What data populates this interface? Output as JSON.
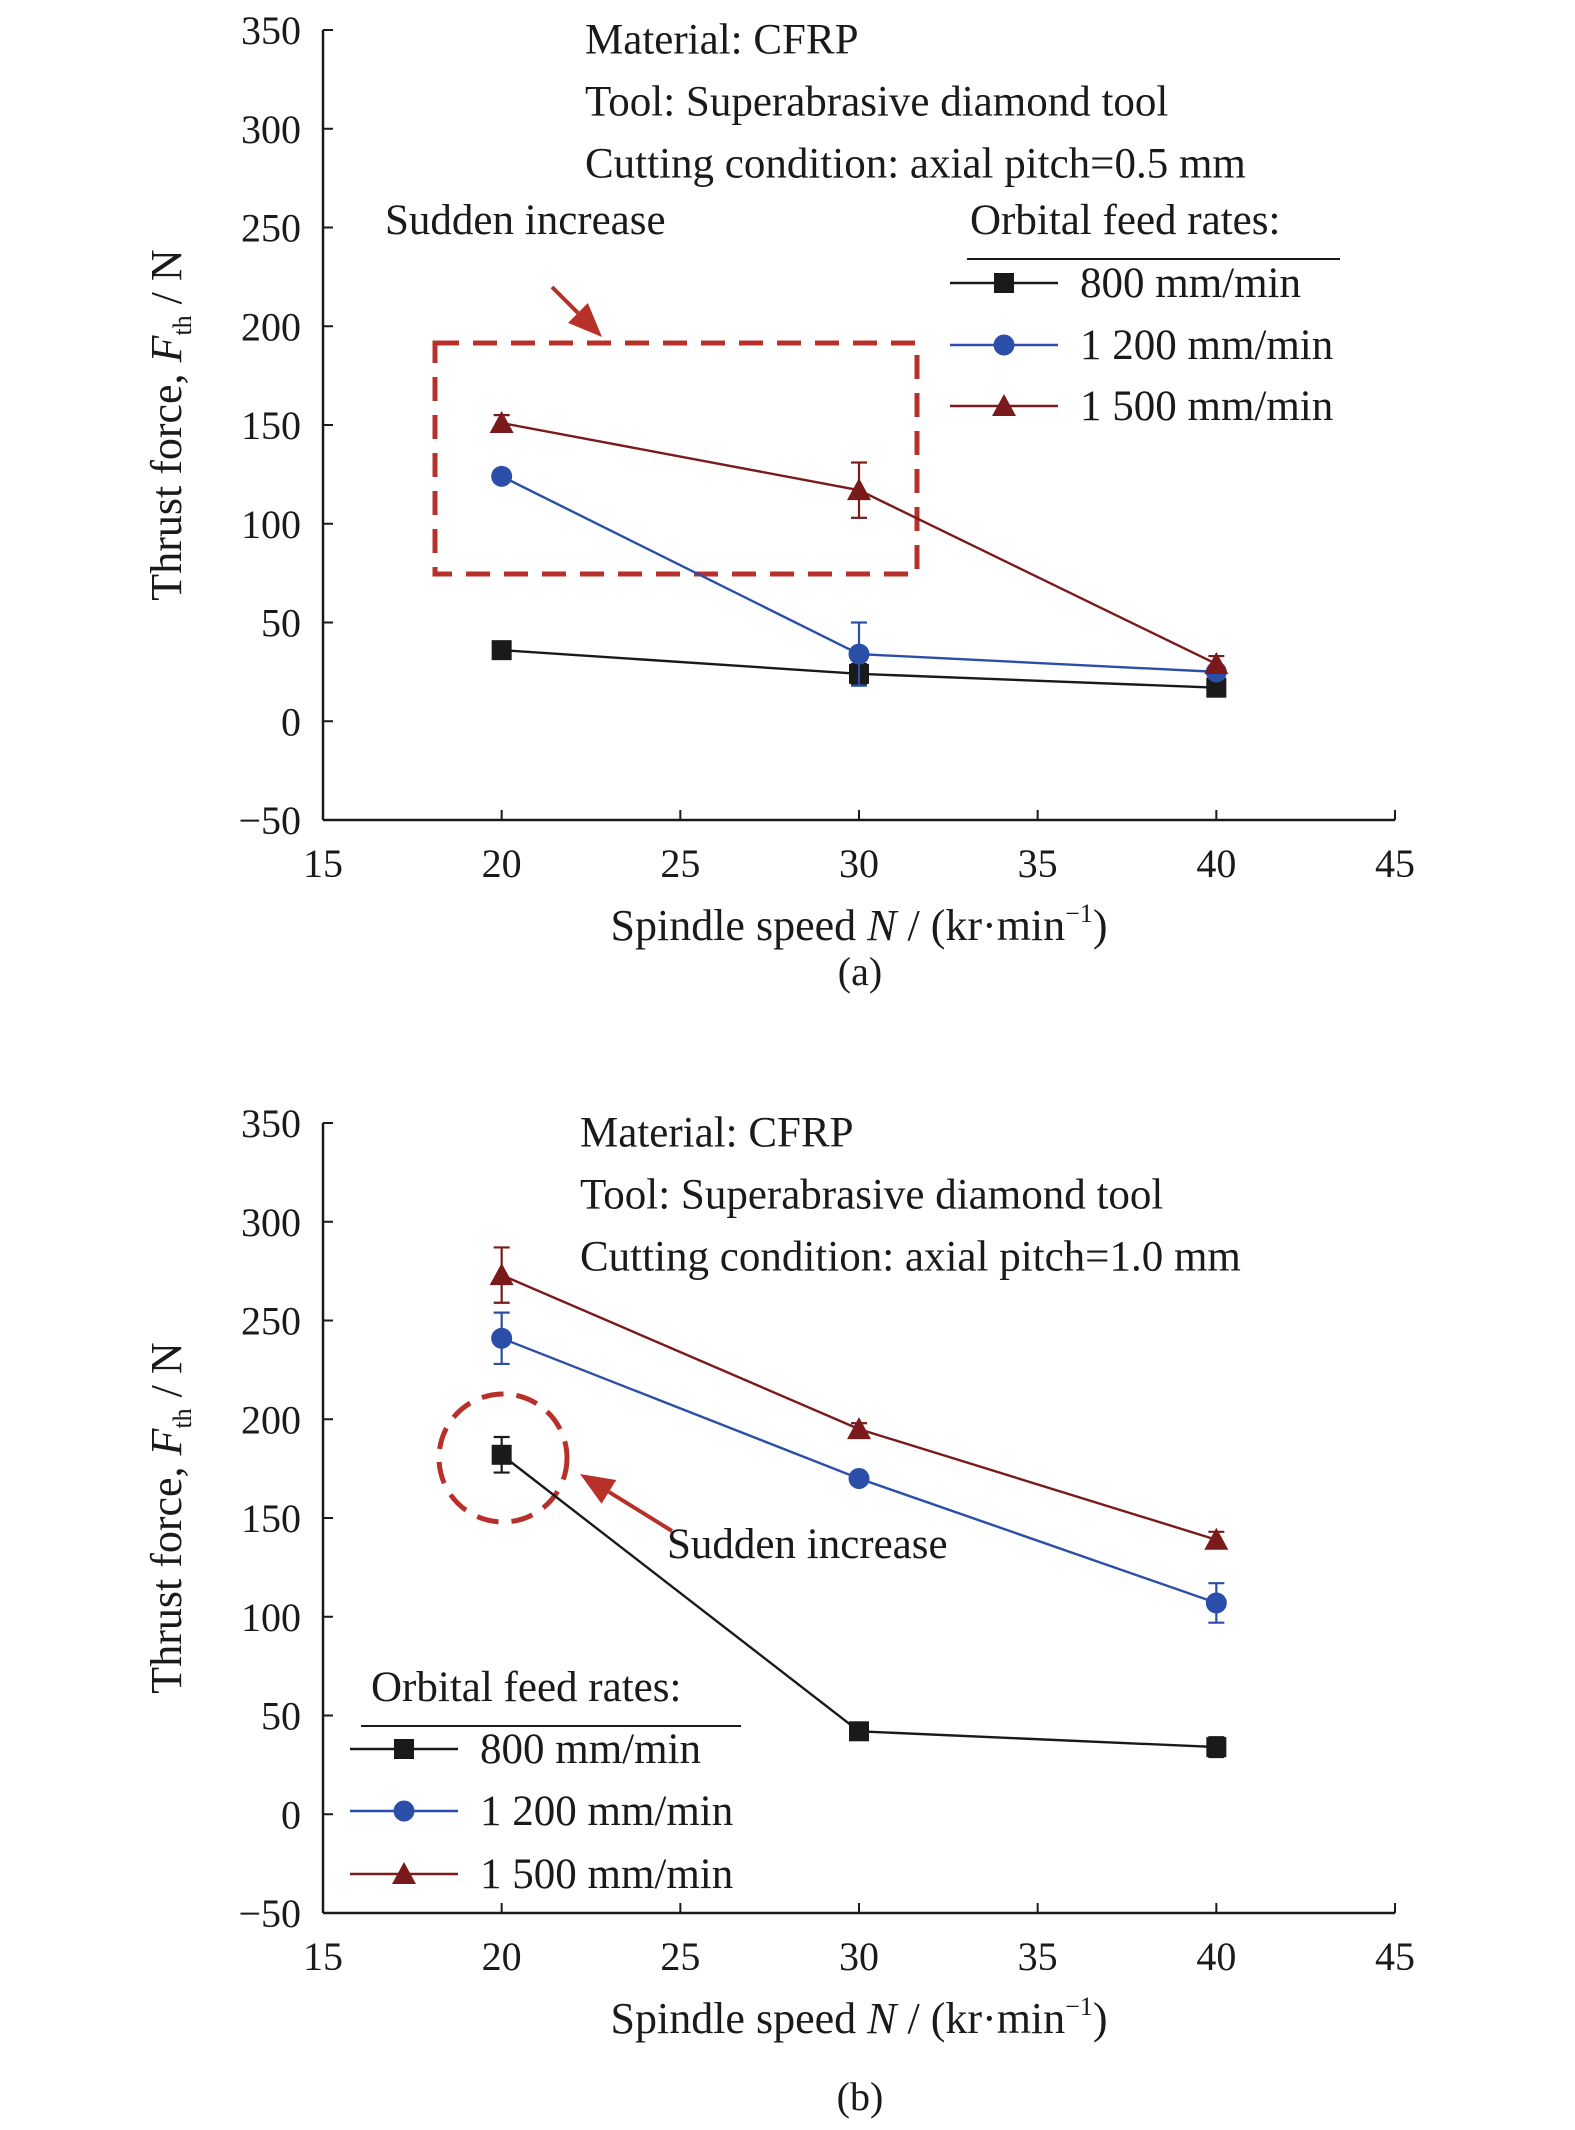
{
  "chart_data": [
    {
      "type": "line",
      "panel_label": "(a)",
      "xlabel_prefix": "Spindle speed ",
      "xlabel_var": "N",
      "xlabel_units": " / (kr·min",
      "xlabel_exp": "−1",
      "xlabel_close": ")",
      "ylabel_prefix": "Thrust force, ",
      "ylabel_var": "F",
      "ylabel_sub": "th",
      "ylabel_units": " / N",
      "xlim": [
        15,
        45
      ],
      "ylim": [
        -50,
        350
      ],
      "xticks": [
        15,
        20,
        25,
        30,
        35,
        40,
        45
      ],
      "yticks": [
        -50,
        0,
        50,
        100,
        150,
        200,
        250,
        300,
        350
      ],
      "xtick_labels": [
        "15",
        "20",
        "25",
        "30",
        "35",
        "40",
        "45"
      ],
      "ytick_labels": [
        "−50",
        "0",
        "50",
        "100",
        "150",
        "200",
        "250",
        "300",
        "350"
      ],
      "notes": [
        "Material: CFRP",
        "Tool: Superabrasive diamond tool",
        "Cutting condition: axial pitch=0.5 mm"
      ],
      "legend_title": "Orbital feed rates:",
      "legend_position": "right",
      "annotation": {
        "text": "Sudden increase",
        "highlight": "box"
      },
      "series": [
        {
          "name": "800 mm/min",
          "marker": "square",
          "color": "#1a1a1a",
          "x": [
            20,
            30,
            40
          ],
          "y": [
            36,
            24,
            17
          ],
          "err": [
            2,
            5,
            2
          ]
        },
        {
          "name": "1 200 mm/min",
          "marker": "circle",
          "color": "#2b4ea8",
          "x": [
            20,
            30,
            40
          ],
          "y": [
            124,
            34,
            25
          ],
          "err": [
            3,
            16,
            3
          ]
        },
        {
          "name": "1 500 mm/min",
          "marker": "triangle",
          "color": "#7a1a1a",
          "x": [
            20,
            30,
            40
          ],
          "y": [
            151,
            117,
            29
          ],
          "err": [
            4,
            14,
            4
          ]
        }
      ]
    },
    {
      "type": "line",
      "panel_label": "(b)",
      "xlabel_prefix": "Spindle speed ",
      "xlabel_var": "N",
      "xlabel_units": " / (kr·min",
      "xlabel_exp": "−1",
      "xlabel_close": ")",
      "ylabel_prefix": "Thrust force, ",
      "ylabel_var": "F",
      "ylabel_sub": "th",
      "ylabel_units": " / N",
      "xlim": [
        15,
        45
      ],
      "ylim": [
        -50,
        350
      ],
      "xticks": [
        15,
        20,
        25,
        30,
        35,
        40,
        45
      ],
      "yticks": [
        -50,
        0,
        50,
        100,
        150,
        200,
        250,
        300,
        350
      ],
      "xtick_labels": [
        "15",
        "20",
        "25",
        "30",
        "35",
        "40",
        "45"
      ],
      "ytick_labels": [
        "−50",
        "0",
        "50",
        "100",
        "150",
        "200",
        "250",
        "300",
        "350"
      ],
      "notes": [
        "Material: CFRP",
        "Tool: Superabrasive diamond tool",
        "Cutting condition: axial pitch=1.0 mm"
      ],
      "legend_title": "Orbital feed rates:",
      "legend_position": "bottom-left",
      "annotation": {
        "text": "Sudden increase",
        "highlight": "circle"
      },
      "series": [
        {
          "name": "800 mm/min",
          "marker": "square",
          "color": "#1a1a1a",
          "x": [
            20,
            30,
            40
          ],
          "y": [
            182,
            42,
            34
          ],
          "err": [
            9,
            3,
            5
          ]
        },
        {
          "name": "1 200 mm/min",
          "marker": "circle",
          "color": "#2b4ea8",
          "x": [
            20,
            30,
            40
          ],
          "y": [
            241,
            170,
            107
          ],
          "err": [
            13,
            3,
            10
          ]
        },
        {
          "name": "1 500 mm/min",
          "marker": "triangle",
          "color": "#7a1a1a",
          "x": [
            20,
            30,
            40
          ],
          "y": [
            273,
            195,
            139
          ],
          "err": [
            14,
            3,
            4
          ]
        }
      ]
    }
  ],
  "annotation_color": "#b8302a"
}
